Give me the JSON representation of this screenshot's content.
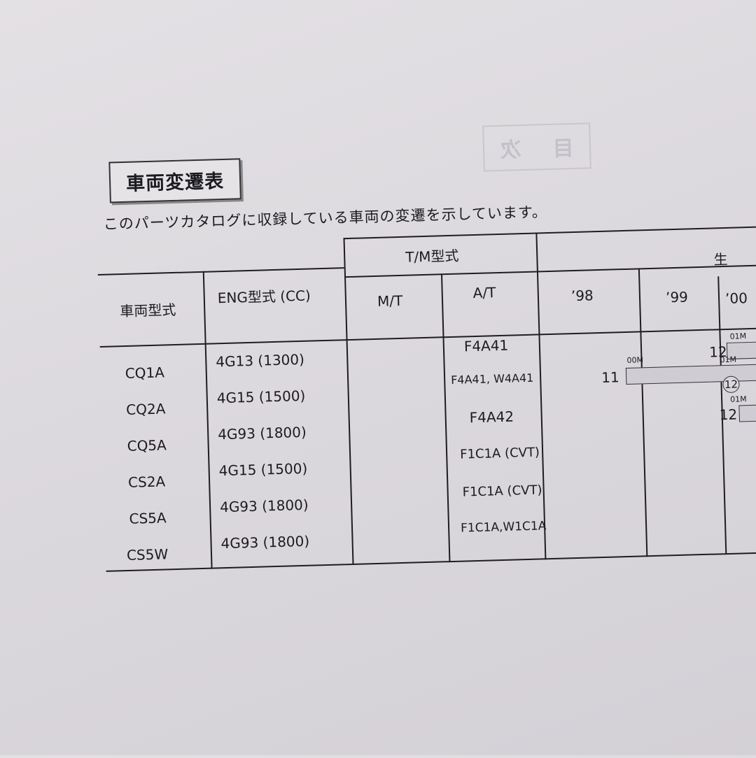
{
  "ghost_heading": [
    "目",
    "次"
  ],
  "title": "車両変遷表",
  "intro": "このパーツカタログに収録している車両の変遷を示しています。",
  "headers": {
    "model": "車両型式",
    "engine": "ENG型式 (CC)",
    "tm": "T/M型式",
    "mt": "M/T",
    "at": "A/T",
    "production": "生",
    "years": [
      "’98",
      "’99",
      "’00"
    ]
  },
  "rows": [
    {
      "model": "CQ1A",
      "engine": "4G13 (1300)",
      "mt": "",
      "at": "F4A41"
    },
    {
      "model": "CQ2A",
      "engine": "4G15 (1500)",
      "mt": "",
      "at": "F4A41, W4A41"
    },
    {
      "model": "CQ5A",
      "engine": "4G93 (1800)",
      "mt": "",
      "at": "F4A42"
    },
    {
      "model": "CS2A",
      "engine": "4G15 (1500)",
      "mt": "",
      "at": "F1C1A (CVT)"
    },
    {
      "model": "CS5A",
      "engine": "4G93 (1800)",
      "mt": "",
      "at": "F1C1A (CVT)"
    },
    {
      "model": "CS5W",
      "engine": "4G93 (1800)",
      "mt": "",
      "at": "F1C1A,W1C1A"
    }
  ],
  "timeline": [
    {
      "month": "12",
      "model_year": "01M"
    },
    {
      "month": "11",
      "model_year": "00M",
      "change_month": "12",
      "change_model_year": "01M"
    },
    {
      "month": "12",
      "model_year": "01M"
    }
  ],
  "colors": {
    "bar_fill": "#cfcdd3",
    "line": "#1d1d22",
    "paper": "#e0dde2"
  }
}
